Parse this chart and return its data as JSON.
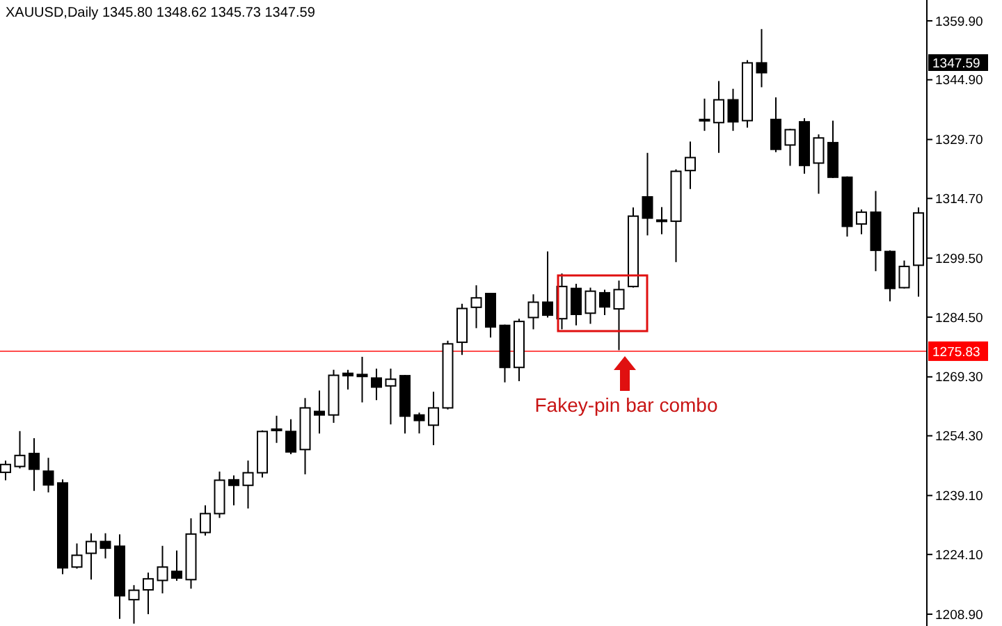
{
  "chart_data": {
    "type": "candlestick",
    "title": "XAUUSD,Daily  1345.80 1348.62 1345.73 1347.59",
    "color": "#000000",
    "categories": [
      null,
      null,
      null,
      null,
      null,
      null,
      null,
      null,
      null,
      null,
      null,
      null,
      null,
      null,
      null,
      null,
      null,
      null,
      null,
      null,
      null,
      null,
      null,
      null,
      null,
      null,
      null,
      null,
      null,
      null,
      null,
      null,
      null,
      null,
      null,
      null,
      null,
      null,
      null,
      null,
      null,
      null,
      null,
      null,
      null,
      null,
      null,
      null,
      null,
      null,
      null,
      null,
      null,
      null,
      null,
      null,
      null,
      null,
      null,
      null,
      null,
      null,
      null,
      null,
      null
    ],
    "ohlc": [
      [
        1245,
        1248,
        1243,
        1247
      ],
      [
        1246.5,
        1255.5,
        1246,
        1249.3
      ],
      [
        1249.8,
        1253.7,
        1240.3,
        1245.8
      ],
      [
        1245.3,
        1248.7,
        1239.9,
        1241.8
      ],
      [
        1242.3,
        1243.2,
        1219.1,
        1220.7
      ],
      [
        1220.9,
        1226.9,
        1220.5,
        1223.9
      ],
      [
        1224.4,
        1229.5,
        1217.7,
        1227.4
      ],
      [
        1227.4,
        1229.5,
        1223.1,
        1225.7
      ],
      [
        1226.2,
        1229.2,
        1207.7,
        1213.6
      ],
      [
        1212.6,
        1216.3,
        1206.5,
        1215
      ],
      [
        1215.1,
        1219.5,
        1208.9,
        1217.9
      ],
      [
        1217.5,
        1226.3,
        1214.2,
        1220.9
      ],
      [
        1219.8,
        1225.1,
        1217.4,
        1218.1
      ],
      [
        1217.7,
        1233.3,
        1215.4,
        1229.3
      ],
      [
        1229.7,
        1236.6,
        1228.9,
        1234.5
      ],
      [
        1234.5,
        1245.2,
        1233.4,
        1243
      ],
      [
        1243.1,
        1244.2,
        1236.6,
        1241.7
      ],
      [
        1241.7,
        1248,
        1235.8,
        1244.9
      ],
      [
        1244.9,
        1255.7,
        1243.7,
        1255.4
      ],
      [
        1256,
        1259.4,
        1252.5,
        1255.7
      ],
      [
        1255.4,
        1258.5,
        1249.6,
        1250.2
      ],
      [
        1250.8,
        1263.9,
        1244.5,
        1261.4
      ],
      [
        1260.5,
        1265.8,
        1254.9,
        1259.6
      ],
      [
        1259.6,
        1271.1,
        1257.6,
        1269.7
      ],
      [
        1270.2,
        1271.1,
        1266.1,
        1269.6
      ],
      [
        1269.9,
        1274.4,
        1262.8,
        1269.4
      ],
      [
        1269,
        1271.4,
        1263.4,
        1266.7
      ],
      [
        1267,
        1271.4,
        1257.2,
        1268.7
      ],
      [
        1269.6,
        1269.8,
        1254.9,
        1259.3
      ],
      [
        1259.6,
        1260.2,
        1254.9,
        1258.2
      ],
      [
        1257,
        1265.5,
        1251.9,
        1261.4
      ],
      [
        1261.4,
        1278.5,
        1261,
        1277.7
      ],
      [
        1278.1,
        1287.9,
        1274.9,
        1286.7
      ],
      [
        1287,
        1292.6,
        1281.7,
        1289.4
      ],
      [
        1290.5,
        1290.7,
        1279.3,
        1282
      ],
      [
        1282.4,
        1282.6,
        1267.9,
        1271.7
      ],
      [
        1271.7,
        1284.1,
        1268.2,
        1283.4
      ],
      [
        1284.4,
        1290.3,
        1281.4,
        1288.3
      ],
      [
        1288.3,
        1301.2,
        1284.4,
        1285
      ],
      [
        1284.1,
        1295.6,
        1281.4,
        1292.3
      ],
      [
        1291.8,
        1293,
        1282.4,
        1285.2
      ],
      [
        1285.5,
        1292,
        1282.8,
        1291.1
      ],
      [
        1290.7,
        1291.5,
        1285,
        1287.1
      ],
      [
        1286.6,
        1293.8,
        1276.1,
        1291.5
      ],
      [
        1292.3,
        1312.4,
        1292,
        1310.2
      ],
      [
        1315.1,
        1326.3,
        1305.3,
        1309.7
      ],
      [
        1309,
        1312.5,
        1305.6,
        1309.2
      ],
      [
        1308.9,
        1322.1,
        1298.5,
        1321.6
      ],
      [
        1321.8,
        1329.2,
        1317.1,
        1325.1
      ],
      [
        1334.6,
        1340.1,
        1331.9,
        1334.8
      ],
      [
        1334,
        1344.6,
        1326.3,
        1339.8
      ],
      [
        1339.8,
        1342.6,
        1331.9,
        1334.2
      ],
      [
        1334.5,
        1349.9,
        1332.7,
        1349.2
      ],
      [
        1349.2,
        1357.8,
        1343,
        1346.7
      ],
      [
        1334.8,
        1340.4,
        1326.5,
        1327.2
      ],
      [
        1328.3,
        1332.4,
        1323,
        1332.2
      ],
      [
        1334.2,
        1335.1,
        1321,
        1323.1
      ],
      [
        1323.7,
        1331,
        1315.9,
        1330.1
      ],
      [
        1328.9,
        1334.5,
        1319.9,
        1320.1
      ],
      [
        1320.1,
        1320.3,
        1305,
        1307.6
      ],
      [
        1308.2,
        1311.9,
        1305.6,
        1311.2
      ],
      [
        1311.2,
        1316.6,
        1296.2,
        1301.5
      ],
      [
        1301.2,
        1301.5,
        1288.5,
        1291.8
      ],
      [
        1292,
        1298.9,
        1291.8,
        1297.4
      ],
      [
        1297.7,
        1312.4,
        1289.7,
        1311
      ]
    ],
    "ylim": [
      1205.9,
      1365.2
    ],
    "yticks": [
      {
        "value": 1359.9,
        "label": "1359.90"
      },
      {
        "value": 1344.9,
        "label": "1344.90"
      },
      {
        "value": 1329.7,
        "label": "1329.70"
      },
      {
        "value": 1314.7,
        "label": "1314.70"
      },
      {
        "value": 1299.5,
        "label": "1299.50"
      },
      {
        "value": 1284.5,
        "label": "1284.50"
      },
      {
        "value": 1269.3,
        "label": "1269.30"
      },
      {
        "value": 1254.3,
        "label": "1254.30"
      },
      {
        "value": 1239.1,
        "label": "1239.10"
      },
      {
        "value": 1224.1,
        "label": "1224.10"
      },
      {
        "value": 1208.9,
        "label": "1208.90"
      }
    ],
    "tick_labels": "y",
    "ref_lines": [
      {
        "axis": "y",
        "value": 1275.83,
        "label": "1275.83",
        "color": "#ff0000"
      }
    ],
    "annotations": [
      "1347.59",
      "Fakey-pin bar combo"
    ]
  }
}
